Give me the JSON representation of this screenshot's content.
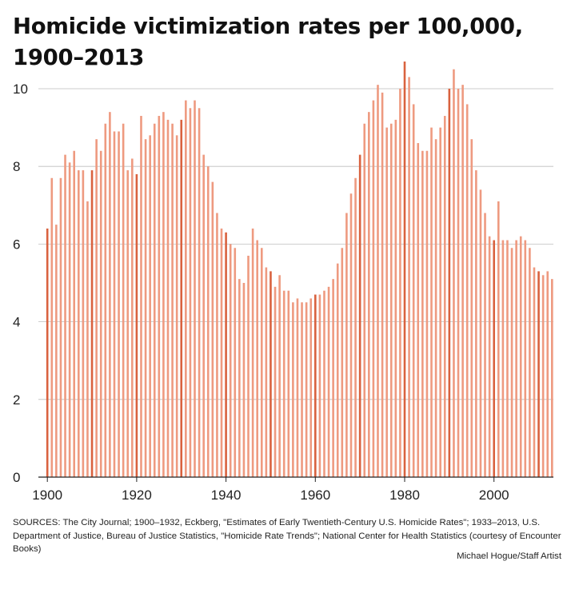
{
  "title": "Homicide victimization rates per 100,000, 1900–2013",
  "sources": "SOURCES: The City Journal; 1900–1932, Eckberg, \"Estimates of Early Twentieth-Century U.S. Homicide Rates\"; 1933–2013, U.S. Department of Justice, Bureau of Justice Statistics, \"Homicide Rate Trends\"; National Center for Health Statistics (courtesy of Encounter Books)",
  "credit": "Michael Hogue/Staff Artist",
  "colors": {
    "bar": "#EE9A80",
    "bar_decade": "#D9623F",
    "grid": "#bdbdbd",
    "axis": "#222222"
  },
  "chart_data": {
    "type": "bar",
    "title": "Homicide victimization rates per 100,000, 1900–2013",
    "xlabel": "",
    "ylabel": "",
    "xlim": [
      1900,
      2013
    ],
    "ylim": [
      0,
      10.5
    ],
    "yticks": [
      0,
      2,
      4,
      6,
      8,
      10
    ],
    "xticks": [
      1900,
      1920,
      1940,
      1960,
      1980,
      2000
    ],
    "grid": true,
    "decade_bars_highlighted": true,
    "years_start": 1900,
    "values": [
      6.4,
      7.7,
      6.5,
      7.7,
      8.3,
      8.1,
      8.4,
      7.9,
      7.9,
      7.1,
      7.9,
      8.7,
      8.4,
      9.1,
      9.4,
      8.9,
      8.9,
      9.1,
      7.9,
      8.2,
      7.8,
      9.3,
      8.7,
      8.8,
      9.1,
      9.3,
      9.4,
      9.2,
      9.1,
      8.8,
      9.2,
      9.7,
      9.5,
      9.7,
      9.5,
      8.3,
      8.0,
      7.6,
      6.8,
      6.4,
      6.3,
      6.0,
      5.9,
      5.1,
      5.0,
      5.7,
      6.4,
      6.1,
      5.9,
      5.4,
      5.3,
      4.9,
      5.2,
      4.8,
      4.8,
      4.5,
      4.6,
      4.5,
      4.5,
      4.6,
      4.7,
      4.7,
      4.8,
      4.9,
      5.1,
      5.5,
      5.9,
      6.8,
      7.3,
      7.7,
      8.3,
      9.1,
      9.4,
      9.7,
      10.1,
      9.9,
      9.0,
      9.1,
      9.2,
      10.0,
      10.7,
      10.3,
      9.6,
      8.6,
      8.4,
      8.4,
      9.0,
      8.7,
      9.0,
      9.3,
      10.0,
      10.5,
      10.0,
      10.1,
      9.6,
      8.7,
      7.9,
      7.4,
      6.8,
      6.2,
      6.1,
      7.1,
      6.1,
      6.1,
      5.9,
      6.1,
      6.2,
      6.1,
      5.9,
      5.4,
      5.3,
      5.2,
      5.3,
      5.1
    ]
  }
}
